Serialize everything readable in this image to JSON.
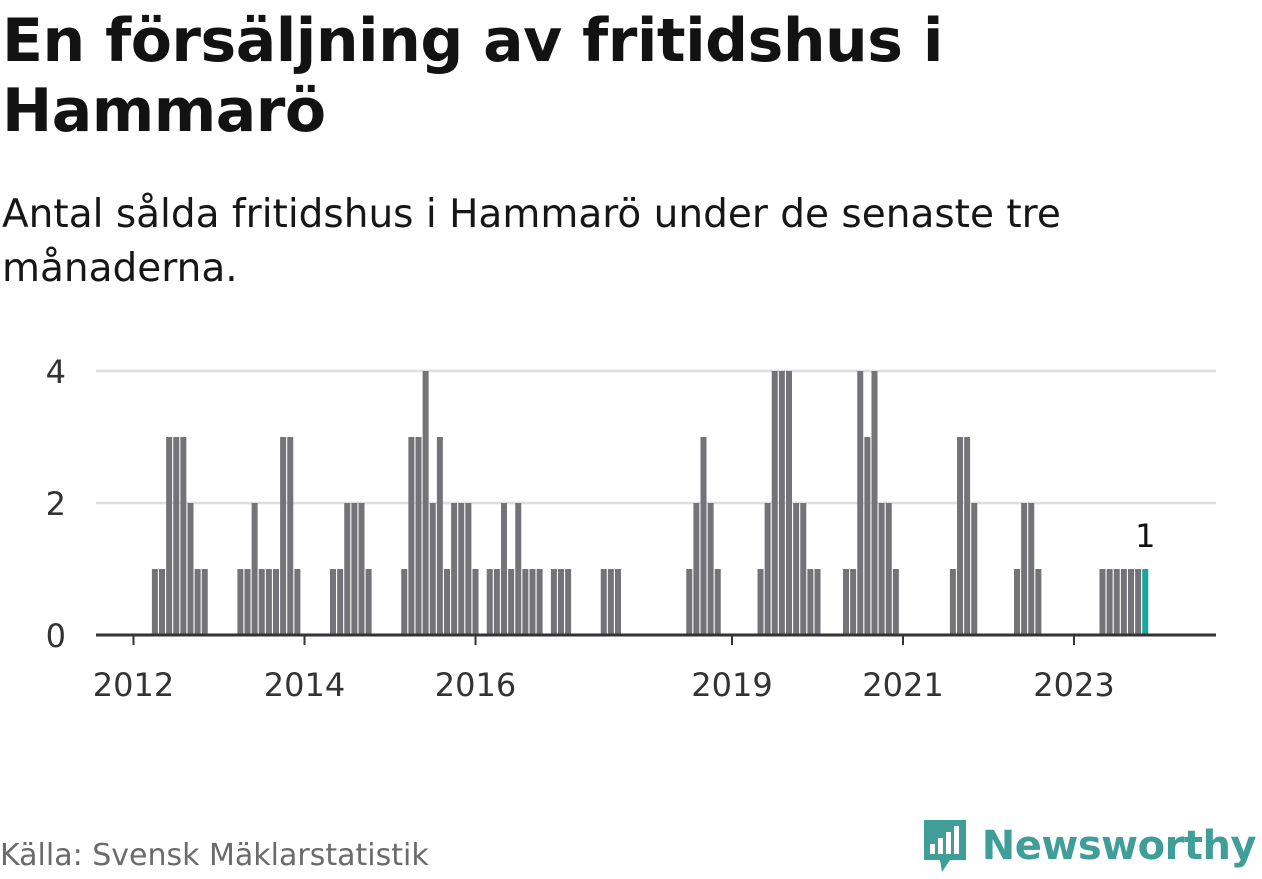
{
  "title": "En försäljning av fritidshus i Hammarö",
  "subtitle": "Antal sålda fritidshus i Hammarö under de senaste tre månaderna.",
  "source": "Källa: Svensk Mäklarstatistik",
  "brand": {
    "name": "Newsworthy",
    "icon": "newsworthy-logo-icon",
    "color": "#3f9e98"
  },
  "colors": {
    "bar": "#747378",
    "highlight": "#1aa6a0",
    "grid": "#dedede",
    "axis": "#333333"
  },
  "chart_data": {
    "type": "bar",
    "ylim": [
      0,
      4
    ],
    "yticks": [
      "0",
      "2",
      "4"
    ],
    "xticks": [
      {
        "label": "2012",
        "at": 8
      },
      {
        "label": "2014",
        "at": 32
      },
      {
        "label": "2016",
        "at": 56
      },
      {
        "label": "2019",
        "at": 92
      },
      {
        "label": "2021",
        "at": 116
      },
      {
        "label": "2023",
        "at": 140
      }
    ],
    "start_label": "2011-10",
    "values": [
      0,
      0,
      0,
      0,
      0,
      0,
      0,
      0,
      0,
      0,
      0,
      1,
      1,
      3,
      3,
      3,
      2,
      1,
      1,
      0,
      0,
      0,
      0,
      1,
      1,
      2,
      1,
      1,
      1,
      3,
      3,
      1,
      0,
      0,
      0,
      0,
      1,
      1,
      2,
      2,
      2,
      1,
      0,
      0,
      0,
      0,
      1,
      3,
      3,
      4,
      2,
      3,
      1,
      2,
      2,
      2,
      1,
      0,
      1,
      1,
      2,
      1,
      2,
      1,
      1,
      1,
      0,
      1,
      1,
      1,
      0,
      0,
      0,
      0,
      1,
      1,
      1,
      0,
      0,
      0,
      0,
      0,
      0,
      0,
      0,
      0,
      1,
      2,
      3,
      2,
      1,
      0,
      0,
      0,
      0,
      0,
      1,
      2,
      4,
      4,
      4,
      2,
      2,
      1,
      1,
      0,
      0,
      0,
      1,
      1,
      4,
      3,
      4,
      2,
      2,
      1,
      0,
      0,
      0,
      0,
      0,
      0,
      0,
      1,
      3,
      3,
      2,
      0,
      0,
      0,
      0,
      0,
      1,
      2,
      2,
      1,
      0,
      0,
      0,
      0,
      0,
      0,
      0,
      0,
      1,
      1,
      1,
      1,
      1,
      1,
      1
    ],
    "highlight_label": "1",
    "legend": "none",
    "grid": true
  }
}
